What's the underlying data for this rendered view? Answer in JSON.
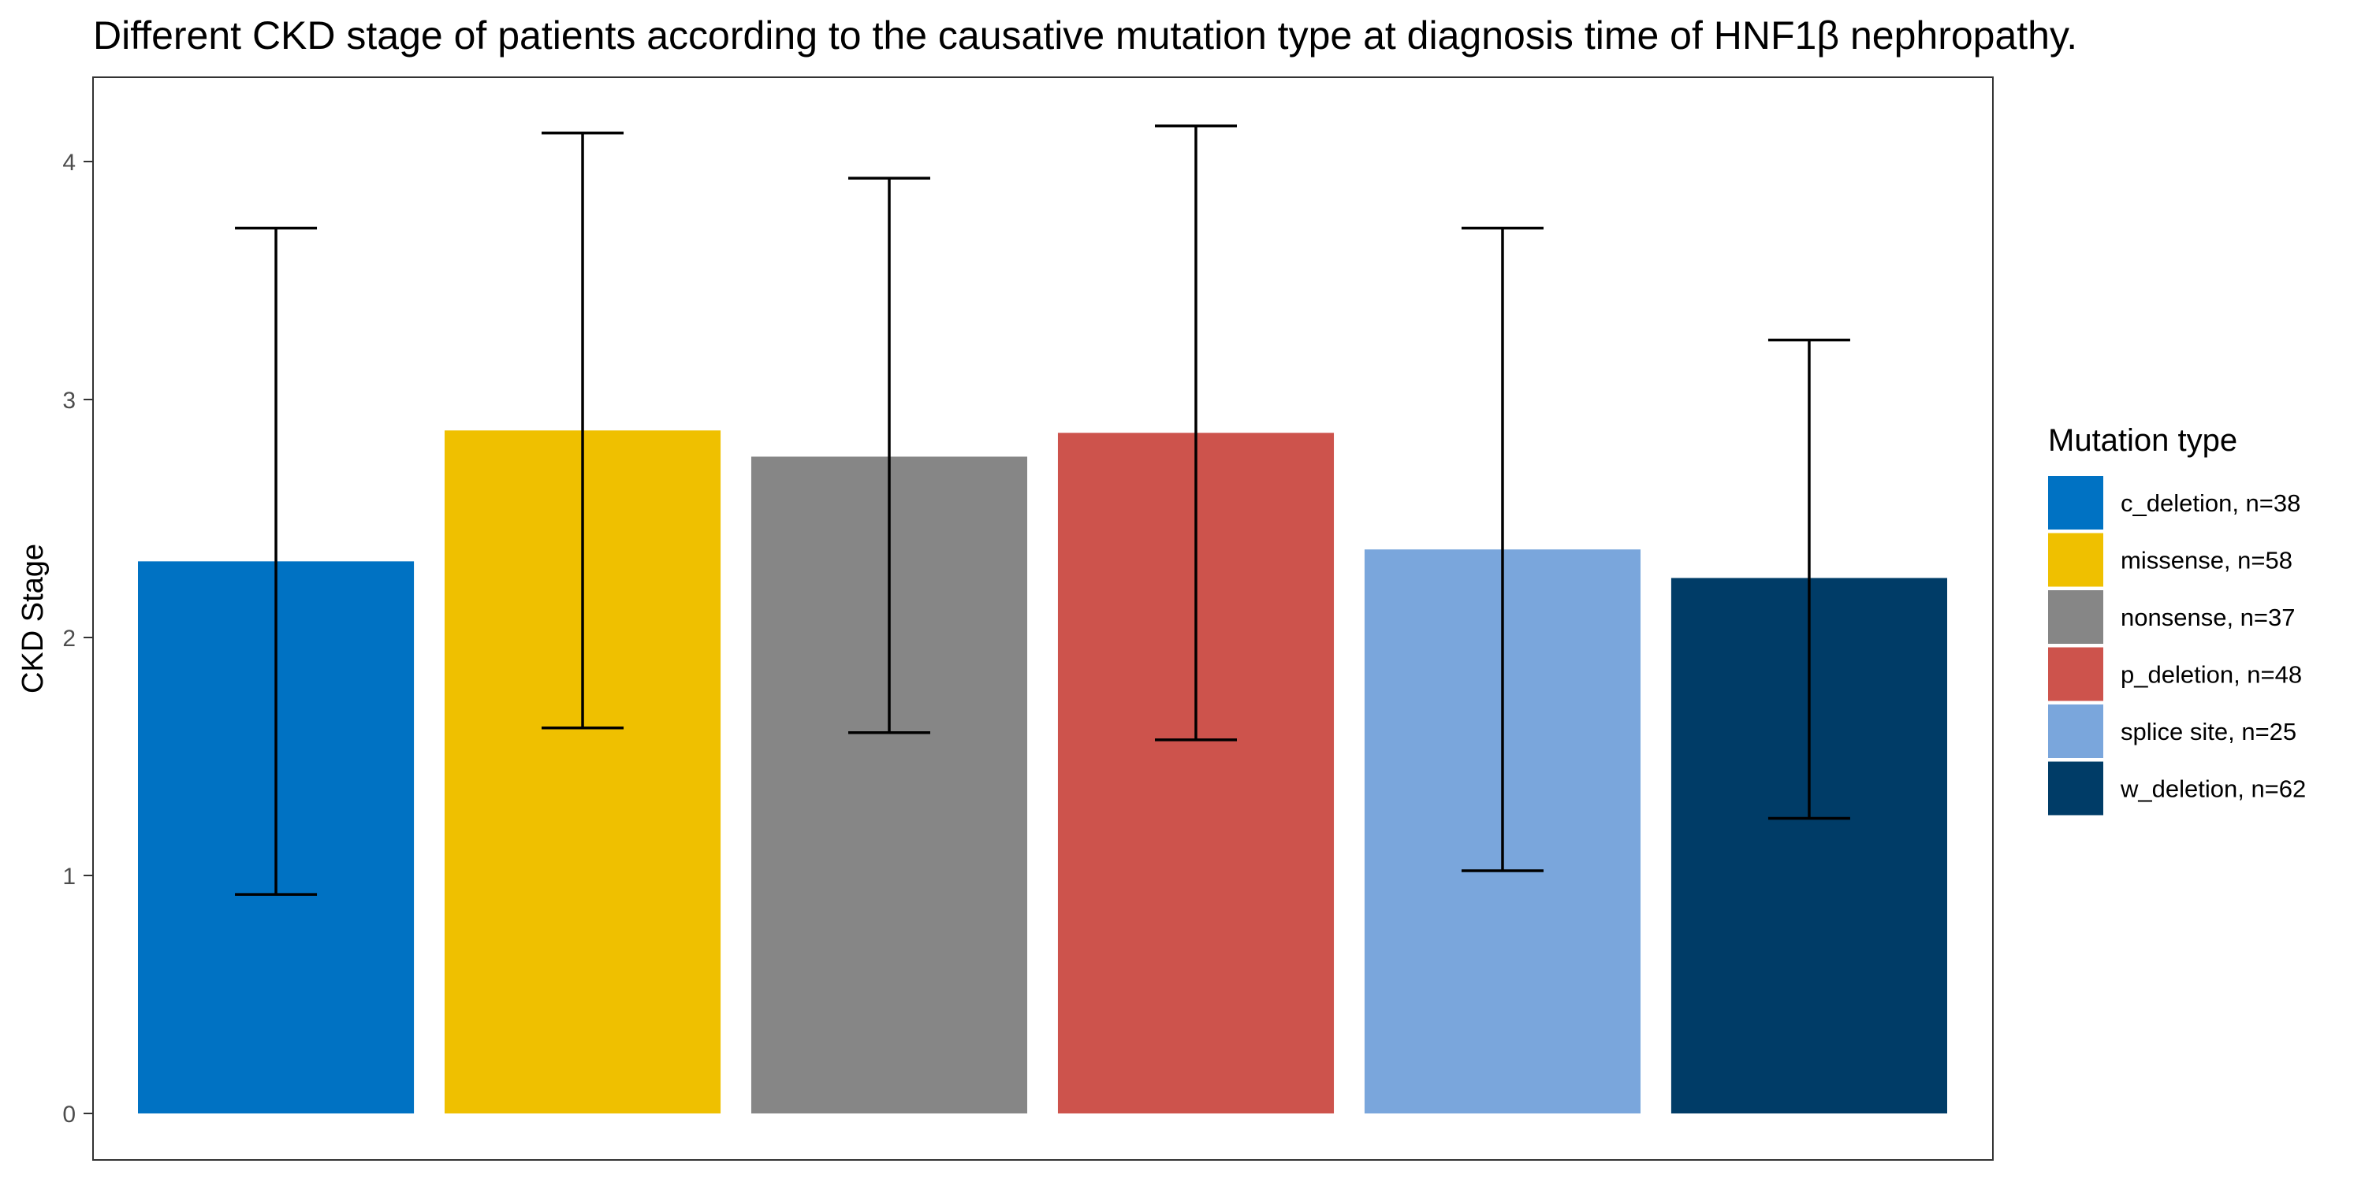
{
  "chart_data": {
    "type": "bar",
    "title": "Different CKD stage of patients according to the causative mutation type at diagnosis time of HNF1β nephropathy.",
    "xlabel": "",
    "ylabel": "CKD Stage",
    "ylim": [
      0,
      4.35
    ],
    "yticks": [
      "0",
      "1",
      "2",
      "3",
      "4"
    ],
    "grid": false,
    "error_bars": true,
    "legend": {
      "title": "Mutation type",
      "position": "right"
    },
    "categories": [
      "c_deletion, n=38",
      "missense, n=58",
      "nonsense, n=37",
      "p_deletion, n=48",
      "splice site, n=25",
      "w_deletion, n=62"
    ],
    "values": [
      2.32,
      2.87,
      2.76,
      2.86,
      2.37,
      2.25
    ],
    "error_low": [
      0.92,
      1.62,
      1.6,
      1.57,
      1.02,
      1.24
    ],
    "error_high": [
      3.72,
      4.12,
      3.93,
      4.15,
      3.72,
      3.25
    ],
    "colors": [
      "#0072c3",
      "#efc000",
      "#868686",
      "#cd534c",
      "#7aa6dc",
      "#003c67"
    ]
  }
}
